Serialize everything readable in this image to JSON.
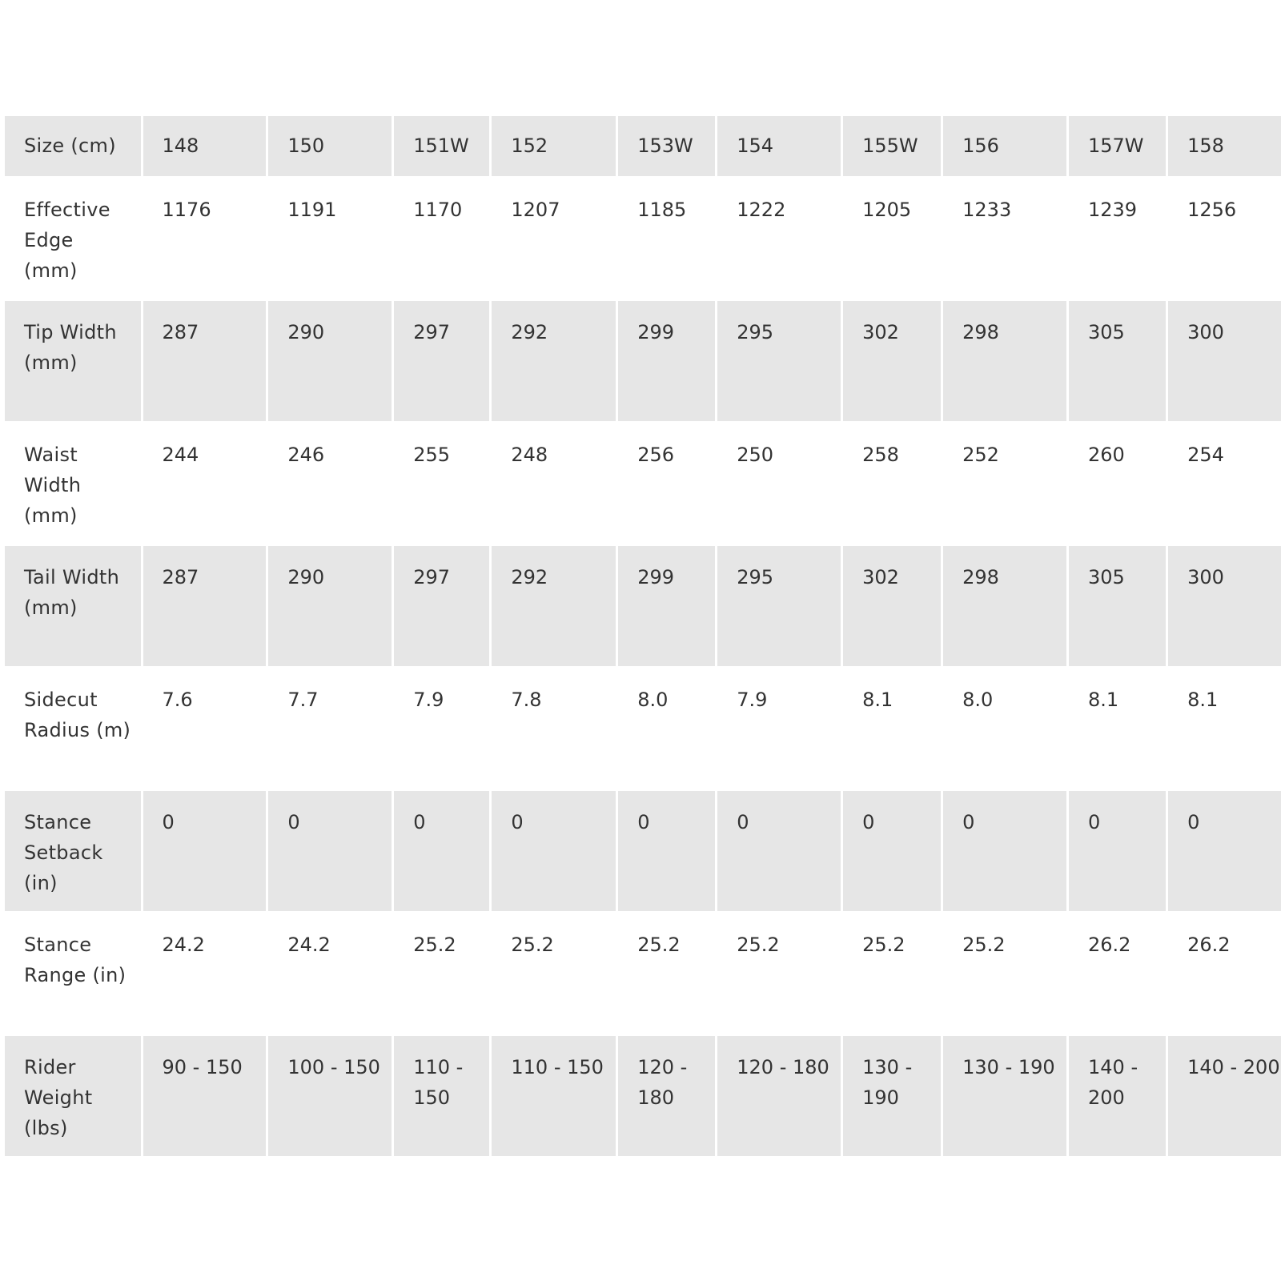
{
  "table": {
    "header": {
      "label": "Size (cm)",
      "values": [
        "148",
        "150",
        "151W",
        "152",
        "153W",
        "154",
        "155W",
        "156",
        "157W",
        "158"
      ]
    },
    "rows": [
      {
        "label": "Effective Edge (mm)",
        "values": [
          "1176",
          "1191",
          "1170",
          "1207",
          "1185",
          "1222",
          "1205",
          "1233",
          "1239",
          "1256"
        ]
      },
      {
        "label": "Tip Width (mm)",
        "values": [
          "287",
          "290",
          "297",
          "292",
          "299",
          "295",
          "302",
          "298",
          "305",
          "300"
        ]
      },
      {
        "label": "Waist Width (mm)",
        "values": [
          "244",
          "246",
          "255",
          "248",
          "256",
          "250",
          "258",
          "252",
          "260",
          "254"
        ]
      },
      {
        "label": "Tail Width (mm)",
        "values": [
          "287",
          "290",
          "297",
          "292",
          "299",
          "295",
          "302",
          "298",
          "305",
          "300"
        ]
      },
      {
        "label": "Sidecut Radius (m)",
        "values": [
          "7.6",
          "7.7",
          "7.9",
          "7.8",
          "8.0",
          "7.9",
          "8.1",
          "8.0",
          "8.1",
          "8.1"
        ]
      },
      {
        "label": "Stance Setback (in)",
        "values": [
          "0",
          "0",
          "0",
          "0",
          "0",
          "0",
          "0",
          "0",
          "0",
          "0"
        ]
      },
      {
        "label": "Stance Range (in)",
        "values": [
          "24.2",
          "24.2",
          "25.2",
          "25.2",
          "25.2",
          "25.2",
          "25.2",
          "25.2",
          "26.2",
          "26.2"
        ]
      },
      {
        "label": "Rider Weight (lbs)",
        "values": [
          "90 - 150",
          "100 - 150",
          "110 - 150",
          "110 - 150",
          "120 - 180",
          "120 - 180",
          "130 - 190",
          "130 - 190",
          "140 - 200",
          "140 - 200"
        ]
      }
    ],
    "colors": {
      "shaded_row": "#e6e6e6",
      "text": "#333333",
      "grid": "#ffffff"
    }
  }
}
